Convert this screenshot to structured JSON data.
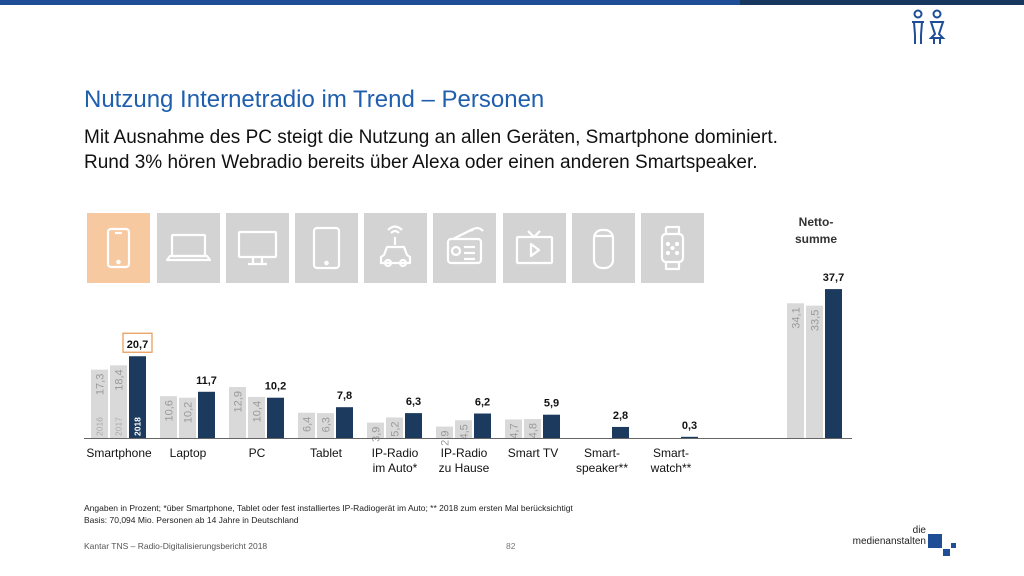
{
  "header": {
    "title": "Nutzung Internetradio im Trend – Personen",
    "subtitle_line1": "Mit Ausnahme des PC steigt die Nutzung an allen Geräten, Smartphone dominiert.",
    "subtitle_line2": "Rund 3% hören Webradio bereits über Alexa oder einen anderen Smartspeaker."
  },
  "netto": {
    "line1": "Netto-",
    "line2": "summe"
  },
  "footnote": {
    "line1": "Angaben in Prozent; *über Smartphone, Tablet oder fest installiertes IP-Radiogerät im Auto; ** 2018 zum ersten Mal berücksichtigt",
    "line2": "Basis: 70,094 Mio. Personen ab 14 Jahre in Deutschland"
  },
  "footer": {
    "source": "Kantar TNS – Radio-Digitalisierungsbericht 2018",
    "page": "82",
    "brand_line1": "die",
    "brand_line2": "medienanstalten"
  },
  "colors": {
    "accent": "#1f5fae",
    "bar2018": "#1c3a5e",
    "barOld": "#d9d9d9",
    "tile": "#d3d3d3",
    "tileHighlight": "#f7c9a0",
    "highlightBorder": "#e8964f"
  },
  "icons": [
    "smartphone-icon",
    "laptop-icon",
    "monitor-icon",
    "tablet-icon",
    "car-radio-icon",
    "radio-icon",
    "smart-tv-icon",
    "smart-speaker-icon",
    "smartwatch-icon"
  ],
  "chart_data": {
    "type": "bar",
    "series": [
      {
        "name": "2016",
        "values": [
          17.3,
          10.6,
          12.9,
          6.4,
          3.9,
          2.9,
          4.7,
          null,
          null,
          34.1
        ]
      },
      {
        "name": "2017",
        "values": [
          18.4,
          10.2,
          10.4,
          6.3,
          5.2,
          4.5,
          4.8,
          null,
          null,
          33.5
        ]
      },
      {
        "name": "2018",
        "values": [
          20.7,
          11.7,
          10.2,
          7.8,
          6.3,
          6.2,
          5.9,
          2.8,
          0.3,
          37.7
        ]
      }
    ],
    "value_labels": {
      "2016": [
        "17,3",
        "10,6",
        "12,9",
        "6,4",
        "3,9",
        "2,9",
        "4,7",
        "",
        "",
        "34,1"
      ],
      "2017": [
        "18,4",
        "10,2",
        "10,4",
        "6,3",
        "5,2",
        "4,5",
        "4,8",
        "",
        "",
        "33,5"
      ],
      "2018": [
        "20,7",
        "11,7",
        "10,2",
        "7,8",
        "6,3",
        "6,2",
        "5,9",
        "2,8",
        "0,3",
        "37,7"
      ]
    },
    "categories": [
      [
        "Smartphone"
      ],
      [
        "Laptop"
      ],
      [
        "PC"
      ],
      [
        "Tablet"
      ],
      [
        "IP-Radio",
        "im Auto*"
      ],
      [
        "IP-Radio",
        "zu Hause"
      ],
      [
        "Smart TV"
      ],
      [
        "Smart-",
        "speaker**"
      ],
      [
        "Smart-",
        "watch**"
      ],
      []
    ],
    "year_labels": [
      "2016",
      "2017",
      "2018"
    ],
    "title": "",
    "xlabel": "",
    "ylabel": "",
    "ylim": [
      0,
      40
    ],
    "grid": false,
    "legend": "none"
  }
}
